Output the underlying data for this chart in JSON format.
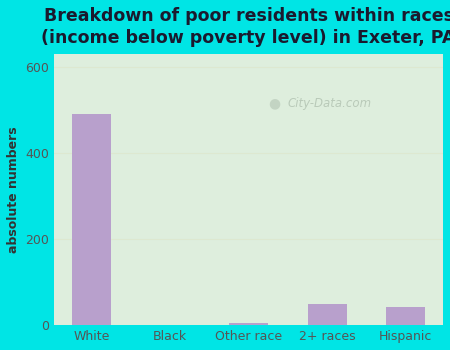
{
  "title": "Breakdown of poor residents within races\n(income below poverty level) in Exeter, PA",
  "categories": [
    "White",
    "Black",
    "Other race",
    "2+ races",
    "Hispanic"
  ],
  "values": [
    490,
    0,
    4,
    50,
    43
  ],
  "bar_color": "#b8a0cc",
  "ylabel": "absolute numbers",
  "ylim": [
    0,
    630
  ],
  "yticks": [
    0,
    200,
    400,
    600
  ],
  "background_outer": "#00e5e5",
  "background_inner_top": "#e8f0e0",
  "background_inner_bottom": "#d8edd8",
  "grid_color": "#dde8d0",
  "title_fontsize": 12.5,
  "title_color": "#1a1a2e",
  "tick_label_color": "#555555",
  "ylabel_color": "#333333",
  "watermark": "City-Data.com",
  "bar_edge_color": "none"
}
